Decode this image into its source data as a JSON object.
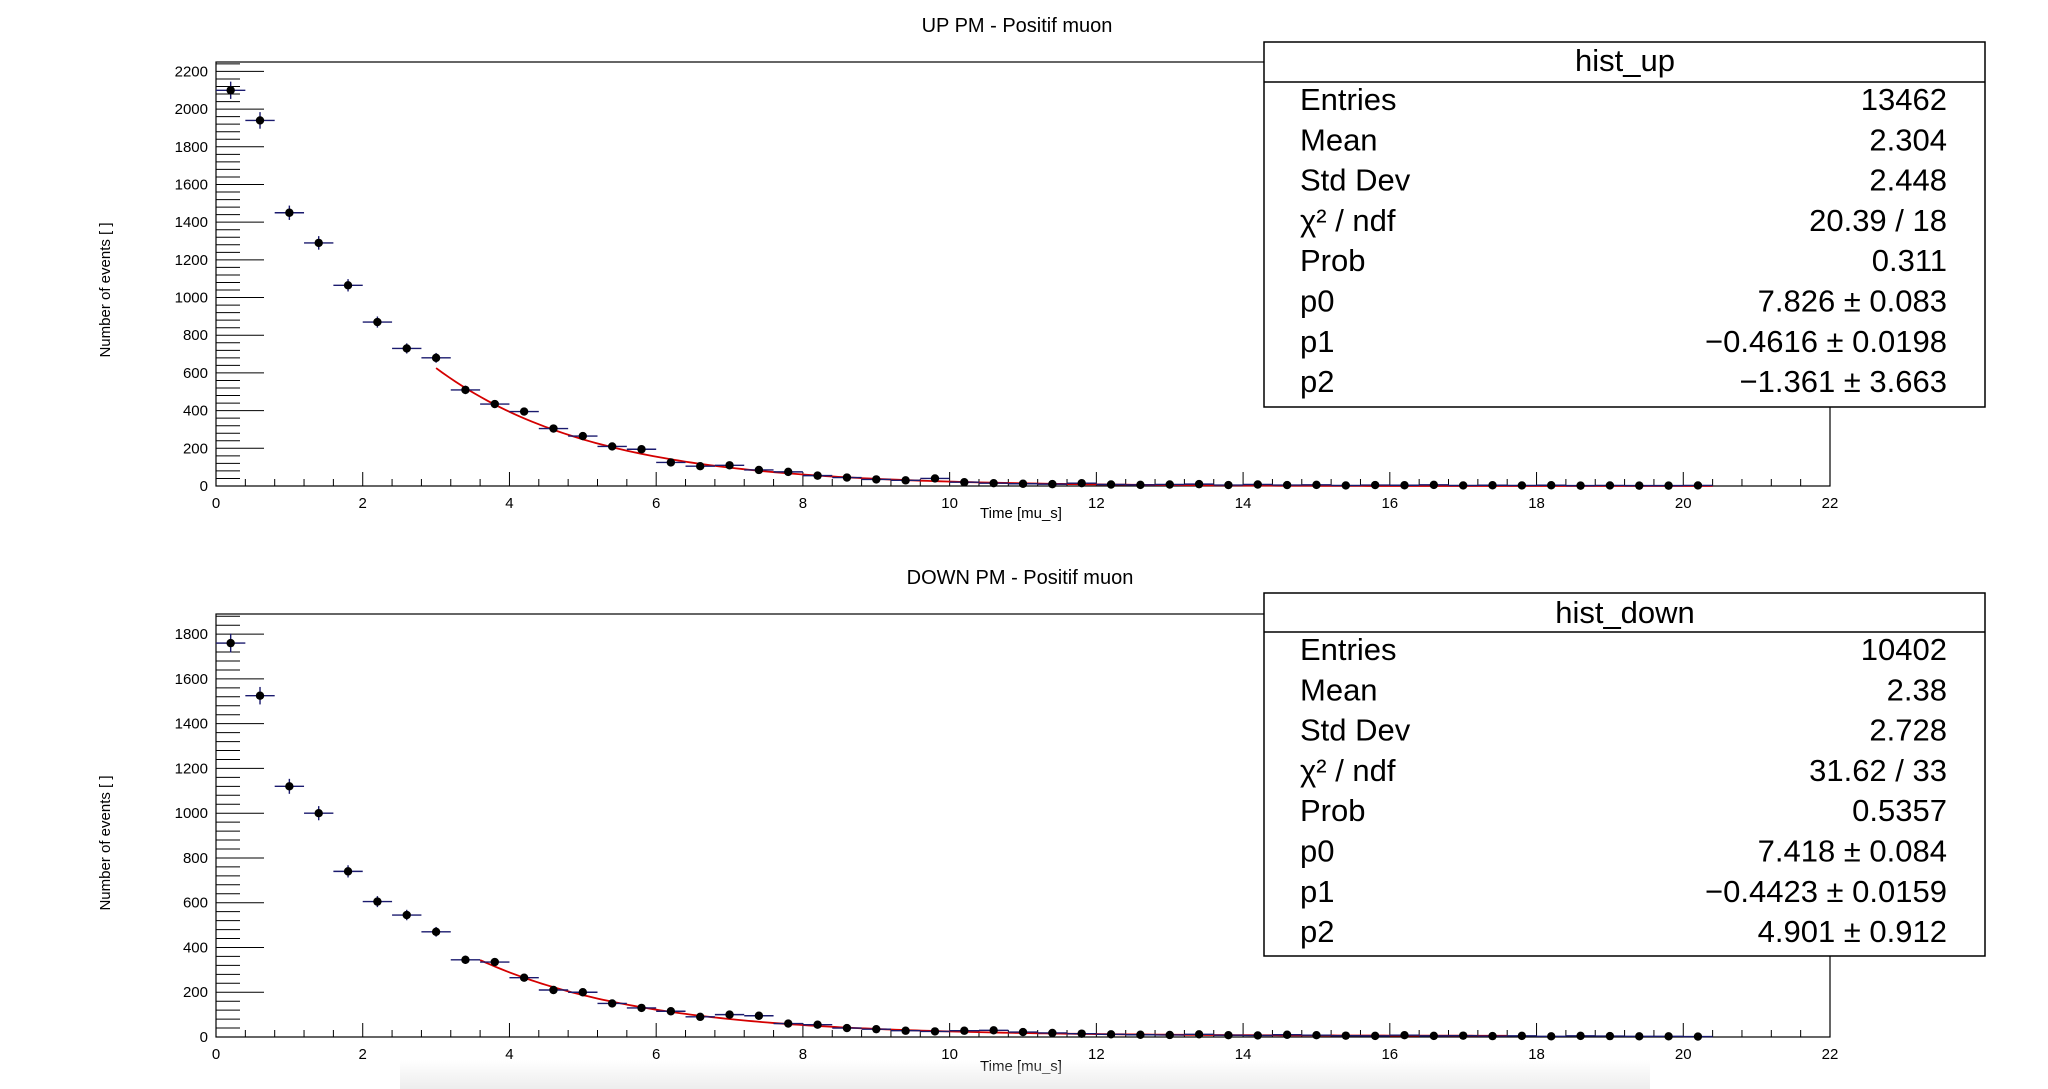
{
  "chart_data": [
    {
      "type": "scatter",
      "title": "UP PM - Positif muon",
      "xlabel": "Time [mu_s]",
      "ylabel": "Number of events [ ]",
      "xlim": [
        0,
        22
      ],
      "ylim": [
        0,
        2250
      ],
      "xticks": [
        0,
        2,
        4,
        6,
        8,
        10,
        12,
        14,
        16,
        18,
        20,
        22
      ],
      "yticks": [
        0,
        200,
        400,
        600,
        800,
        1000,
        1200,
        1400,
        1600,
        1800,
        2000,
        2200
      ],
      "bin_width": 0.4,
      "x": [
        0.2,
        0.6,
        1.0,
        1.4,
        1.8,
        2.2,
        2.6,
        3.0,
        3.4,
        3.8,
        4.2,
        4.6,
        5.0,
        5.4,
        5.8,
        6.2,
        6.6,
        7.0,
        7.4,
        7.8,
        8.2,
        8.6,
        9.0,
        9.4,
        9.8,
        10.2,
        10.6,
        11.0,
        11.4,
        11.8,
        12.2,
        12.6,
        13.0,
        13.4,
        13.8,
        14.2,
        14.6,
        15.0,
        15.4,
        15.8,
        16.2,
        16.6,
        17.0,
        17.4,
        17.8,
        18.2,
        18.6,
        19.0,
        19.4,
        19.8,
        20.2
      ],
      "values": [
        2100,
        1940,
        1450,
        1290,
        1065,
        870,
        730,
        680,
        510,
        435,
        395,
        305,
        265,
        210,
        195,
        125,
        105,
        110,
        85,
        75,
        55,
        45,
        35,
        30,
        40,
        20,
        15,
        12,
        10,
        15,
        8,
        6,
        8,
        10,
        5,
        8,
        5,
        6,
        3,
        5,
        4,
        6,
        3,
        4,
        3,
        4,
        2,
        3,
        2,
        2,
        3
      ],
      "fit": {
        "x_start": 3.0,
        "x_end": 20.4,
        "p0": 7.826,
        "p1": -0.4616,
        "p2": -1.361
      },
      "stats": {
        "title": "hist_up",
        "rows": [
          {
            "label": "Entries",
            "value": "13462"
          },
          {
            "label": "Mean",
            "value": "2.304"
          },
          {
            "label": "Std Dev",
            "value": "2.448"
          },
          {
            "label": "χ² / ndf",
            "value": "20.39 / 18"
          },
          {
            "label": "Prob",
            "value": "0.311"
          },
          {
            "label": "p0",
            "value": "7.826 ± 0.083"
          },
          {
            "label": "p1",
            "value": "−0.4616 ± 0.0198"
          },
          {
            "label": "p2",
            "value": "−1.361 ± 3.663"
          }
        ]
      }
    },
    {
      "type": "scatter",
      "title": "DOWN PM - Positif muon",
      "xlabel": "Time [mu_s]",
      "ylabel": "Number of events [ ]",
      "xlim": [
        0,
        22
      ],
      "ylim": [
        0,
        1890
      ],
      "xticks": [
        0,
        2,
        4,
        6,
        8,
        10,
        12,
        14,
        16,
        18,
        20,
        22
      ],
      "yticks": [
        0,
        200,
        400,
        600,
        800,
        1000,
        1200,
        1400,
        1600,
        1800
      ],
      "bin_width": 0.4,
      "x": [
        0.2,
        0.6,
        1.0,
        1.4,
        1.8,
        2.2,
        2.6,
        3.0,
        3.4,
        3.8,
        4.2,
        4.6,
        5.0,
        5.4,
        5.8,
        6.2,
        6.6,
        7.0,
        7.4,
        7.8,
        8.2,
        8.6,
        9.0,
        9.4,
        9.8,
        10.2,
        10.6,
        11.0,
        11.4,
        11.8,
        12.2,
        12.6,
        13.0,
        13.4,
        13.8,
        14.2,
        14.6,
        15.0,
        15.4,
        15.8,
        16.2,
        16.6,
        17.0,
        17.4,
        17.8,
        18.2,
        18.6,
        19.0,
        19.4,
        19.8,
        20.2
      ],
      "values": [
        1760,
        1525,
        1120,
        1000,
        740,
        605,
        545,
        470,
        345,
        335,
        265,
        210,
        200,
        150,
        130,
        115,
        90,
        100,
        95,
        60,
        55,
        40,
        35,
        28,
        25,
        28,
        30,
        22,
        18,
        15,
        12,
        10,
        9,
        12,
        8,
        7,
        10,
        8,
        6,
        5,
        8,
        5,
        6,
        4,
        5,
        3,
        5,
        4,
        3,
        3,
        2
      ],
      "fit": {
        "x_start": 3.6,
        "x_end": 17.6,
        "p0": 7.418,
        "p1": -0.4423,
        "p2": 4.901
      },
      "stats": {
        "title": "hist_down",
        "rows": [
          {
            "label": "Entries",
            "value": "10402"
          },
          {
            "label": "Mean",
            "value": "2.38"
          },
          {
            "label": "Std Dev",
            "value": "2.728"
          },
          {
            "label": "χ² / ndf",
            "value": "31.62 / 33"
          },
          {
            "label": "Prob",
            "value": "0.5357"
          },
          {
            "label": "p0",
            "value": "7.418 ± 0.084"
          },
          {
            "label": "p1",
            "value": "−0.4423 ± 0.0159"
          },
          {
            "label": "p2",
            "value": "4.901 ± 0.912"
          }
        ]
      }
    }
  ]
}
